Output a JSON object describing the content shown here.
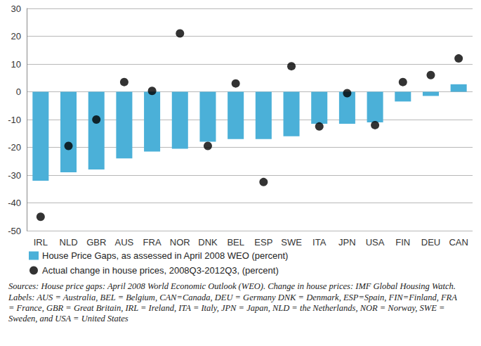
{
  "chart_data": {
    "type": "bar",
    "categories": [
      "IRL",
      "NLD",
      "GBR",
      "AUS",
      "FRA",
      "NOR",
      "DNK",
      "BEL",
      "ESP",
      "SWE",
      "ITA",
      "JPN",
      "USA",
      "FIN",
      "DEU",
      "CAN"
    ],
    "series": [
      {
        "name": "House Price Gaps, as assessed in April 2008 WEO (percent)",
        "type": "bar",
        "color": "#4bb0d8",
        "values": [
          -32,
          -29,
          -28,
          -24,
          -21.5,
          -20.5,
          -18,
          -17,
          -17,
          -16,
          -11.5,
          -11.5,
          -11,
          -3.5,
          -1.5,
          2.7
        ]
      },
      {
        "name": "Actual change in house prices, 2008Q3-2012Q3, (percent)",
        "type": "scatter",
        "color": "#000000",
        "marker": "circle",
        "values": [
          -45,
          -19.5,
          -10,
          3.5,
          0.3,
          21,
          -19.5,
          3,
          -32.5,
          9.2,
          -12.5,
          -0.5,
          -12,
          3.5,
          6,
          12
        ]
      }
    ],
    "ylim": [
      -50,
      30
    ],
    "yticks": [
      -50,
      -40,
      -30,
      -20,
      -10,
      0,
      10,
      20,
      30
    ],
    "grid": true,
    "legend": "bottom",
    "annotations": [
      "Sources: House price gaps: April 2008 World Economic Outlook (WEO). Change in house prices: IMF Global Housing Watch.",
      "Labels: AUS = Australia, BEL = Belgium, CAN=Canada, DEU = Germany DNK = Denmark, ESP=Spain, FIN=Finland, FRA = France, GBR = Great Britain, IRL = Ireland, ITA = Italy, JPN = Japan, NLD = the Netherlands, NOR = Norway, SWE = Sweden, and USA = United States"
    ]
  }
}
